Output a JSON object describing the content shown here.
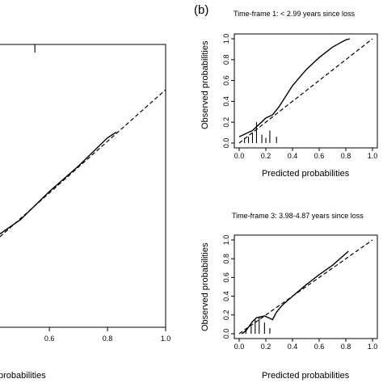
{
  "panel_tag": "(b)",
  "chart_data": [
    {
      "id": "left",
      "type": "line",
      "xlabel": "probabilities",
      "xticks": [
        "0.6",
        "0.8",
        "1.0"
      ],
      "xlim": [
        0.43,
        1.0
      ],
      "ylim": [
        0.0,
        1.0
      ],
      "series": [
        {
          "kind": "calibration-curve",
          "style": "solid",
          "x": [
            0.43,
            0.5,
            0.6,
            0.7,
            0.8,
            0.83
          ],
          "y": [
            0.33,
            0.38,
            0.48,
            0.57,
            0.67,
            0.69
          ]
        },
        {
          "kind": "reference",
          "style": "dashed",
          "x": [
            0.43,
            1.0
          ],
          "y": [
            0.32,
            0.84
          ]
        }
      ],
      "rug": [
        0.55
      ]
    },
    {
      "id": "top-right",
      "type": "line",
      "title": "Time-frame 1:  < 2.99  years since loss",
      "xlabel": "Predicted probabilities",
      "ylabel": "Observed probabilities",
      "xticks": [
        "0.0",
        "0.2",
        "0.4",
        "0.6",
        "0.8",
        "1.0"
      ],
      "yticks": [
        "0.0",
        "0.2",
        "0.4",
        "0.6",
        "0.8",
        "1.0"
      ],
      "xlim": [
        0.0,
        1.0
      ],
      "ylim": [
        0.0,
        1.0
      ],
      "series": [
        {
          "kind": "calibration-curve",
          "style": "solid",
          "x": [
            0.0,
            0.05,
            0.1,
            0.15,
            0.2,
            0.25,
            0.3,
            0.35,
            0.4,
            0.5,
            0.6,
            0.7,
            0.8,
            0.83
          ],
          "y": [
            0.06,
            0.09,
            0.12,
            0.18,
            0.24,
            0.27,
            0.35,
            0.45,
            0.55,
            0.7,
            0.82,
            0.92,
            0.99,
            1.0
          ]
        },
        {
          "kind": "reference",
          "style": "dashed",
          "x": [
            0.0,
            1.0
          ],
          "y": [
            0.0,
            1.0
          ]
        }
      ],
      "rug": [
        0.04,
        0.07,
        0.1,
        0.13,
        0.17,
        0.2,
        0.23,
        0.28
      ],
      "rug_height": [
        0.05,
        0.06,
        0.1,
        0.2,
        0.08,
        0.05,
        0.12,
        0.06
      ]
    },
    {
      "id": "bottom-right",
      "type": "line",
      "title": "Time-frame 3:  3.98-4.87  years since loss",
      "xlabel": "Predicted probabilities",
      "ylabel": "Observed probabilities",
      "xticks": [
        "0.0",
        "0.2",
        "0.4",
        "0.6",
        "0.8",
        "1.0"
      ],
      "yticks": [
        "0.0",
        "0.2",
        "0.4",
        "0.6",
        "0.8",
        "1.0"
      ],
      "xlim": [
        0.0,
        1.0
      ],
      "ylim": [
        0.0,
        1.0
      ],
      "series": [
        {
          "kind": "calibration-curve",
          "style": "solid",
          "x": [
            0.02,
            0.05,
            0.08,
            0.1,
            0.13,
            0.16,
            0.19,
            0.22,
            0.25,
            0.28,
            0.32,
            0.4,
            0.5,
            0.6,
            0.7,
            0.82
          ],
          "y": [
            0.0,
            0.03,
            0.09,
            0.13,
            0.17,
            0.18,
            0.19,
            0.17,
            0.15,
            0.23,
            0.3,
            0.4,
            0.52,
            0.63,
            0.73,
            0.88
          ]
        },
        {
          "kind": "reference",
          "style": "dashed",
          "x": [
            0.0,
            1.0
          ],
          "y": [
            0.0,
            1.0
          ]
        }
      ],
      "rug": [
        0.05,
        0.09,
        0.12,
        0.15,
        0.19,
        0.23
      ],
      "rug_height": [
        0.05,
        0.08,
        0.15,
        0.18,
        0.12,
        0.06
      ]
    }
  ]
}
